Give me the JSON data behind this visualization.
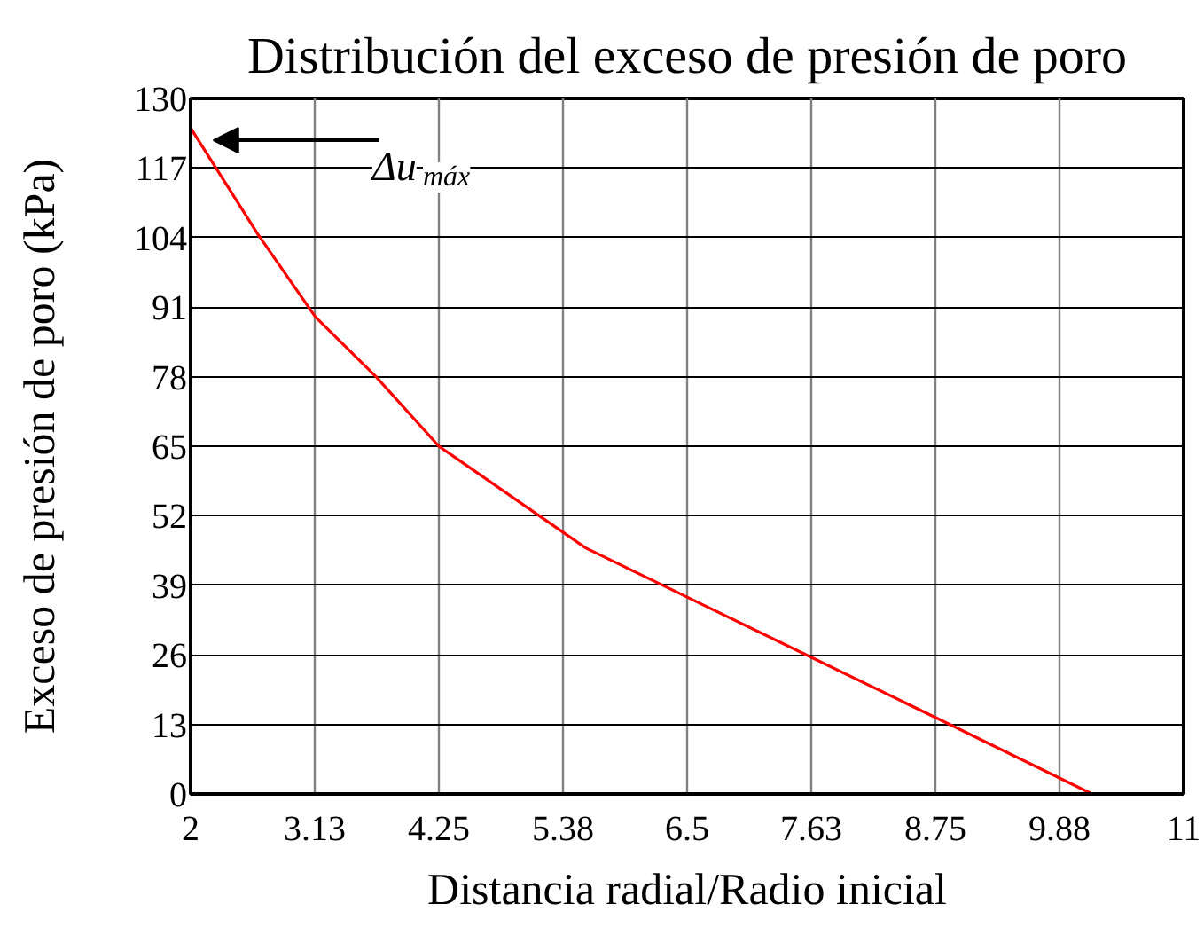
{
  "chart_data": {
    "type": "line",
    "title": "Distribución del exceso de presión de poro",
    "xlabel": "Distancia radial/Radio inicial",
    "ylabel": "Exceso de presión de poro (kPa)",
    "x": [
      2,
      2.61,
      3.13,
      3.68,
      4.25,
      5.58,
      6.5,
      7.63,
      8.75,
      10.17
    ],
    "values": [
      124.5,
      104.6,
      89.2,
      78,
      65,
      46,
      36.8,
      25.5,
      14.3,
      0
    ],
    "color": "#ff0000",
    "line_style": "solid",
    "marker": "none",
    "xlim": [
      2,
      11
    ],
    "xticks": [
      2,
      {
        "value": 3.125,
        "label": "3.13"
      },
      4.25,
      {
        "value": 5.375,
        "label": "5.38"
      },
      6.5,
      {
        "value": 7.625,
        "label": "7.63"
      },
      8.75,
      {
        "value": 9.875,
        "label": "9.88"
      },
      11
    ],
    "ylim": [
      0,
      130
    ],
    "yticks": [
      0,
      13,
      26,
      39,
      52,
      65,
      78,
      91,
      104,
      117,
      130
    ],
    "grid": true,
    "annotations": [
      "Δu$_{máx}$"
    ]
  }
}
